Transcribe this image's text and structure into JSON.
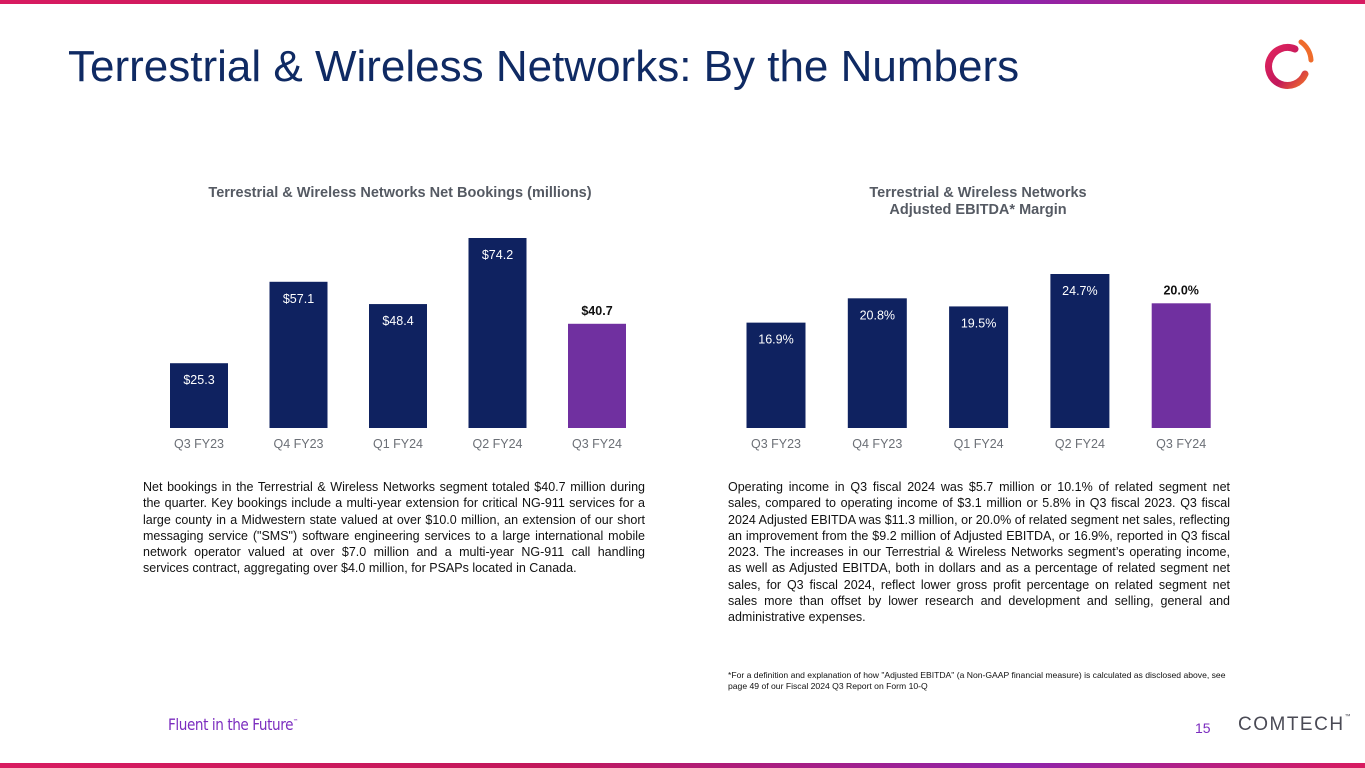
{
  "page": {
    "title": "Terrestrial & Wireless Networks: By the Numbers",
    "tagline": "Fluent in the Future",
    "tagline_mark": "™",
    "page_number": "15",
    "brand": "COMTECH",
    "brand_mark": "™"
  },
  "colors": {
    "navy": "#0f2260",
    "purple": "#7030a0",
    "brand_magenta": "#d81b60"
  },
  "chart_data": [
    {
      "type": "bar",
      "title": "Terrestrial & Wireless Networks Net Bookings (millions)",
      "categories": [
        "Q3 FY23",
        "Q4 FY23",
        "Q1 FY24",
        "Q2 FY24",
        "Q3 FY24"
      ],
      "values": [
        25.3,
        57.1,
        48.4,
        74.2,
        40.7
      ],
      "labels": [
        "$25.3",
        "$57.1",
        "$48.4",
        "$74.2",
        "$40.7"
      ],
      "highlight_index": 4,
      "ylim": [
        0,
        74.2
      ],
      "xlabel": "",
      "ylabel": "",
      "grid": false
    },
    {
      "type": "bar",
      "title_lines": [
        "Terrestrial & Wireless Networks",
        "Adjusted EBITDA* Margin"
      ],
      "categories": [
        "Q3 FY23",
        "Q4 FY23",
        "Q1 FY24",
        "Q2 FY24",
        "Q3 FY24"
      ],
      "values": [
        16.9,
        20.8,
        19.5,
        24.7,
        20.0
      ],
      "labels": [
        "16.9%",
        "20.8%",
        "19.5%",
        "24.7%",
        "20.0%"
      ],
      "highlight_index": 4,
      "ylim": [
        0,
        24.7
      ],
      "xlabel": "",
      "ylabel": "",
      "grid": false
    }
  ],
  "text": {
    "bookings_paragraph": "Net bookings in the Terrestrial & Wireless Networks segment totaled $40.7 million during the quarter. Key bookings include a multi-year extension for critical NG-911 services for a large county in a Midwestern state valued at over $10.0 million, an extension of our short messaging service (\"SMS\") software engineering services to a large international mobile network operator valued at over $7.0 million and a multi-year NG-911 call handling services contract, aggregating over $4.0 million, for PSAPs located in Canada.",
    "ebitda_paragraph": "Operating income in Q3 fiscal 2024 was $5.7 million or 10.1% of related segment net sales, compared to operating income of $3.1 million or 5.8% in Q3 fiscal 2023. Q3 fiscal 2024 Adjusted EBITDA was $11.3 million, or 20.0% of related segment net sales, reflecting an improvement from the $9.2 million of Adjusted EBITDA, or 16.9%, reported in Q3 fiscal 2023. The increases in our Terrestrial & Wireless Networks segment’s operating income, as well as Adjusted EBITDA, both in dollars and as a percentage of related segment net sales, for Q3 fiscal 2024, reflect lower gross profit percentage on related segment net sales more than offset by lower research and development and selling, general and administrative expenses.",
    "footnote": "*For a definition and explanation of how \"Adjusted EBITDA\" (a Non-GAAP financial measure) is calculated as disclosed above, see page 49 of our Fiscal 2024 Q3 Report on Form 10-Q"
  }
}
